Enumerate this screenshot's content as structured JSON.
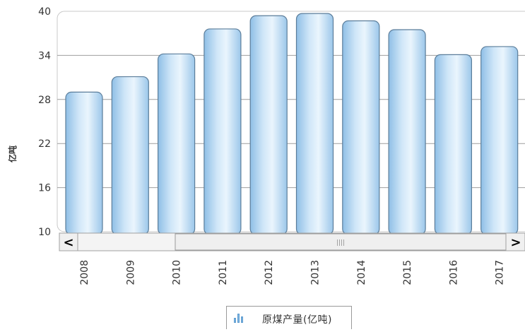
{
  "chart_data": {
    "type": "bar",
    "categories": [
      "2008",
      "2009",
      "2010",
      "2011",
      "2012",
      "2013",
      "2014",
      "2015",
      "2016",
      "2017"
    ],
    "series": [
      {
        "name": "原煤产量(亿吨)",
        "values": [
          29.0,
          31.1,
          34.2,
          37.6,
          39.4,
          39.7,
          38.7,
          37.5,
          34.1,
          35.2
        ]
      }
    ],
    "ylabel": "亿吨",
    "ylim": [
      10,
      40
    ],
    "yticks": [
      10,
      16,
      22,
      28,
      34,
      40
    ],
    "grid": true,
    "legend": "bottom",
    "colors": {
      "bar": "#b3d7f2",
      "bar_edge": "#5b7d9a",
      "grid": "#9e9e9e",
      "axis_text": "#333333"
    }
  },
  "scrollbar": {
    "left_arrow": "<",
    "right_arrow": ">",
    "grip": "||||"
  }
}
